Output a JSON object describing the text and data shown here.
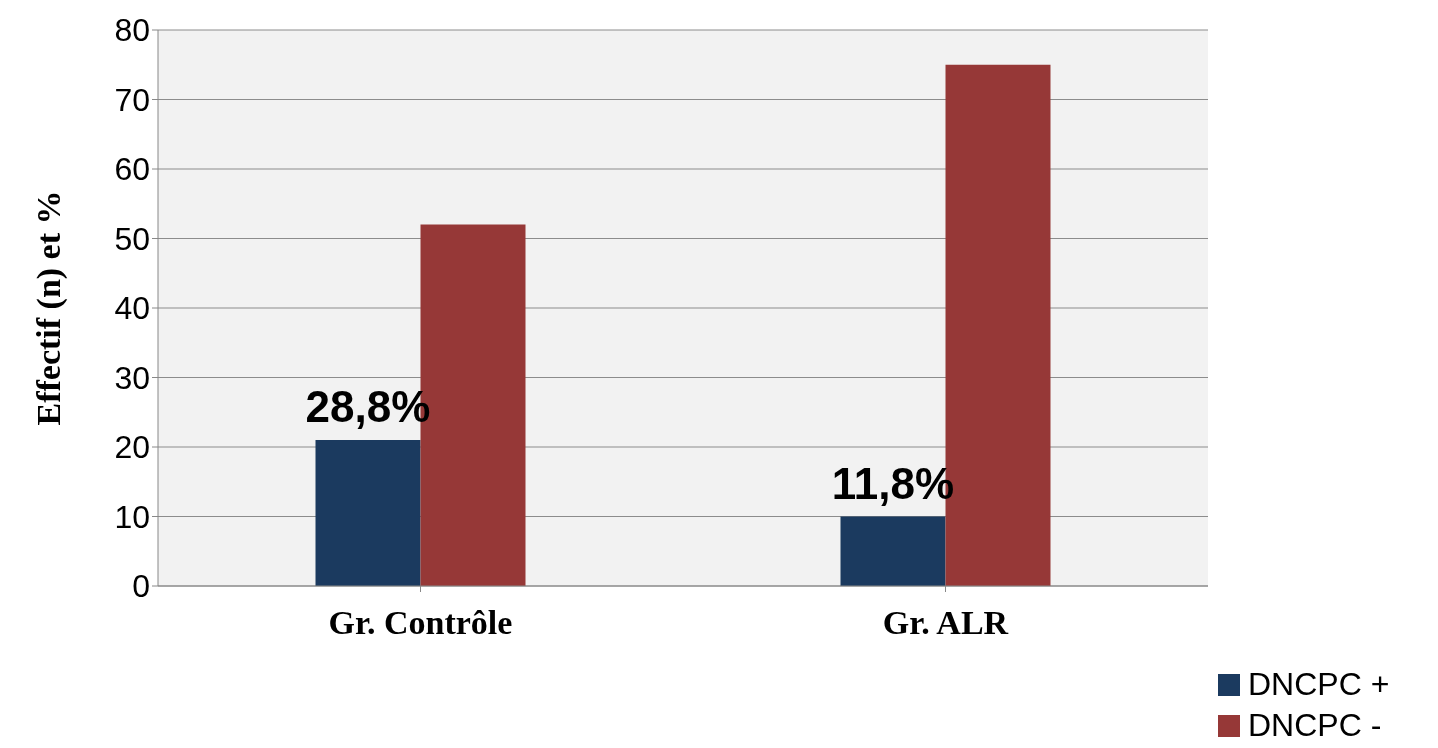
{
  "chart_data": {
    "type": "bar",
    "ylabel": "Effectif (n) et %",
    "categories": [
      "Gr. Contrôle",
      "Gr. ALR"
    ],
    "series": [
      {
        "name": "DNCPC +",
        "color": "#1b3a5f",
        "values": [
          21,
          10
        ]
      },
      {
        "name": "DNCPC -",
        "color": "#963837",
        "values": [
          52,
          75
        ]
      }
    ],
    "annotations": [
      {
        "text": "28,8%",
        "x": "Gr. Contrôle",
        "y": 21
      },
      {
        "text": "11,8%",
        "x": "Gr. ALR",
        "y": 10
      }
    ],
    "ylim": [
      0,
      80
    ],
    "yticks": [
      0,
      10,
      20,
      30,
      40,
      50,
      60,
      70,
      80
    ],
    "grid": "y",
    "legend": "bottom right"
  }
}
